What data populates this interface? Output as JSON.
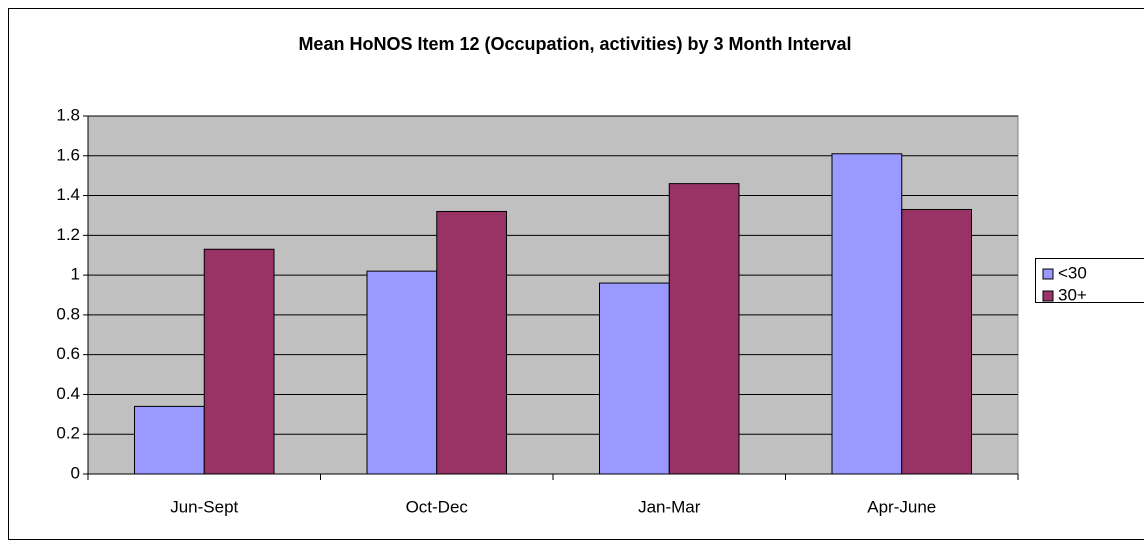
{
  "chart_data": {
    "type": "bar",
    "title": "Mean HoNOS Item 12 (Occupation, activities) by 3 Month Interval",
    "categories": [
      "Jun-Sept",
      "Oct-Dec",
      "Jan-Mar",
      "Apr-June"
    ],
    "series": [
      {
        "name": "<30",
        "color": "#9999ff",
        "values": [
          0.34,
          1.02,
          0.96,
          1.61
        ]
      },
      {
        "name": "30+",
        "color": "#993366",
        "values": [
          1.13,
          1.32,
          1.46,
          1.33
        ]
      }
    ],
    "ylim": [
      0,
      1.8
    ],
    "yticks": [
      0,
      0.2,
      0.4,
      0.6,
      0.8,
      1,
      1.2,
      1.4,
      1.6,
      1.8
    ],
    "grid": true,
    "legend": "right"
  }
}
